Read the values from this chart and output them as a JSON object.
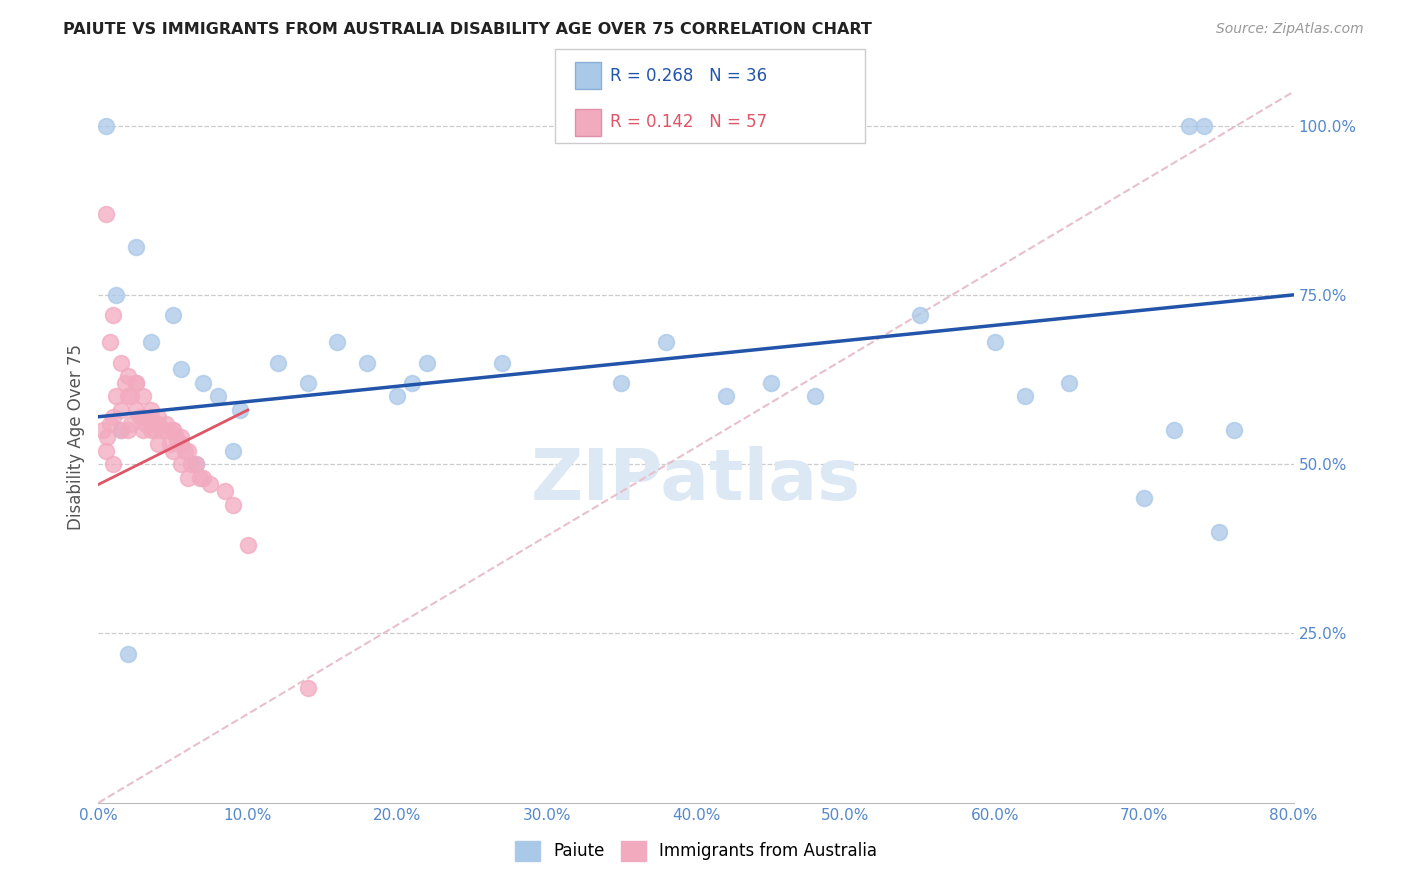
{
  "title": "PAIUTE VS IMMIGRANTS FROM AUSTRALIA DISABILITY AGE OVER 75 CORRELATION CHART",
  "source": "Source: ZipAtlas.com",
  "ylabel": "Disability Age Over 75",
  "x_tick_labels": [
    "0.0%",
    "10.0%",
    "20.0%",
    "30.0%",
    "40.0%",
    "50.0%",
    "60.0%",
    "70.0%",
    "80.0%"
  ],
  "y_tick_labels": [
    "25.0%",
    "50.0%",
    "75.0%",
    "100.0%"
  ],
  "xlim": [
    0.0,
    80.0
  ],
  "ylim": [
    0.0,
    108.0
  ],
  "legend_r_blue": "R = 0.268",
  "legend_n_blue": "N = 36",
  "legend_r_pink": "R = 0.142",
  "legend_n_pink": "N = 57",
  "blue_color": "#aac8e8",
  "pink_color": "#f2aabf",
  "blue_line_color": "#2255aa",
  "pink_line_color": "#dd5566",
  "ref_line_color": "#e8c0cc",
  "watermark_color": "#dde8f5",
  "paiute_x": [
    0.5,
    1.2,
    2.5,
    3.5,
    5.0,
    5.5,
    7.0,
    8.0,
    9.5,
    12.0,
    14.0,
    16.0,
    18.0,
    20.0,
    21.0,
    22.0,
    27.0,
    35.0,
    38.0,
    42.0,
    45.0,
    48.0,
    55.0,
    60.0,
    62.0,
    65.0,
    70.0,
    72.0,
    75.0,
    76.0,
    1.5,
    2.0,
    6.5,
    9.0,
    73.0,
    74.0
  ],
  "paiute_y": [
    100.0,
    75.0,
    82.0,
    68.0,
    72.0,
    64.0,
    62.0,
    60.0,
    58.0,
    65.0,
    62.0,
    68.0,
    65.0,
    60.0,
    62.0,
    65.0,
    65.0,
    62.0,
    68.0,
    60.0,
    62.0,
    60.0,
    72.0,
    68.0,
    60.0,
    62.0,
    45.0,
    55.0,
    40.0,
    55.0,
    55.0,
    22.0,
    50.0,
    52.0,
    100.0,
    100.0
  ],
  "aus_x": [
    0.3,
    0.5,
    0.6,
    0.8,
    1.0,
    1.0,
    1.2,
    1.5,
    1.5,
    1.8,
    2.0,
    2.0,
    2.2,
    2.2,
    2.5,
    2.5,
    2.8,
    3.0,
    3.0,
    3.2,
    3.5,
    3.5,
    3.8,
    4.0,
    4.0,
    4.2,
    4.5,
    4.8,
    5.0,
    5.0,
    5.2,
    5.5,
    5.5,
    5.8,
    6.0,
    6.0,
    6.2,
    6.5,
    6.8,
    7.0,
    7.5,
    0.5,
    0.8,
    1.0,
    1.5,
    2.0,
    2.5,
    3.0,
    3.5,
    4.0,
    4.5,
    5.0,
    5.5,
    8.5,
    9.0,
    10.0,
    14.0
  ],
  "aus_y": [
    55.0,
    52.0,
    54.0,
    56.0,
    57.0,
    50.0,
    60.0,
    58.0,
    55.0,
    62.0,
    60.0,
    55.0,
    60.0,
    56.0,
    62.0,
    58.0,
    57.0,
    57.0,
    55.0,
    56.0,
    57.0,
    55.0,
    55.0,
    56.0,
    53.0,
    55.0,
    55.0,
    53.0,
    55.0,
    52.0,
    54.0,
    53.0,
    50.0,
    52.0,
    52.0,
    48.0,
    50.0,
    50.0,
    48.0,
    48.0,
    47.0,
    87.0,
    68.0,
    72.0,
    65.0,
    63.0,
    62.0,
    60.0,
    58.0,
    57.0,
    56.0,
    55.0,
    54.0,
    46.0,
    44.0,
    38.0,
    17.0
  ]
}
